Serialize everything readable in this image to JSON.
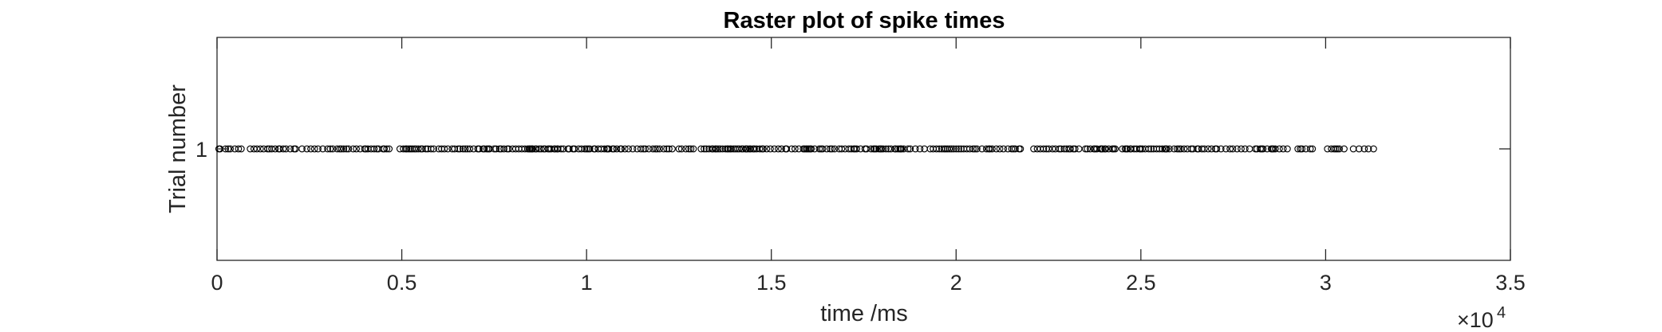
{
  "chart_data": {
    "type": "scatter",
    "title": "Raster plot of spike times",
    "xlabel": "time /ms",
    "ylabel": "Trial number",
    "xlim": [
      0,
      35000
    ],
    "ylim": [
      0,
      2
    ],
    "x_scale_label": {
      "base": "×10",
      "exponent": "4"
    },
    "x_ticks": [
      {
        "value": 0,
        "label": "0"
      },
      {
        "value": 5000,
        "label": "0.5"
      },
      {
        "value": 10000,
        "label": "1"
      },
      {
        "value": 15000,
        "label": "1.5"
      },
      {
        "value": 20000,
        "label": "2"
      },
      {
        "value": 25000,
        "label": "2.5"
      },
      {
        "value": 30000,
        "label": "3"
      },
      {
        "value": 35000,
        "label": "3.5"
      }
    ],
    "y_ticks": [
      {
        "value": 1,
        "label": "1"
      }
    ],
    "marker": "open-circle",
    "marker_color": "#000000",
    "grid": false,
    "series": [
      {
        "trial": 1,
        "spike_segments_ms": [
          [
            50,
            750,
            95
          ],
          [
            900,
            2200,
            75
          ],
          [
            2300,
            3500,
            85
          ],
          [
            3500,
            4700,
            80
          ],
          [
            4950,
            5900,
            60
          ],
          [
            6000,
            7400,
            75
          ],
          [
            7500,
            7950,
            80
          ],
          [
            8000,
            9400,
            55
          ],
          [
            9500,
            10100,
            70
          ],
          [
            10200,
            11200,
            65
          ],
          [
            11250,
            12400,
            75
          ],
          [
            12500,
            13000,
            90
          ],
          [
            13100,
            14550,
            50
          ],
          [
            14600,
            15500,
            70
          ],
          [
            15550,
            16400,
            80
          ],
          [
            16500,
            17600,
            75
          ],
          [
            17700,
            18600,
            65
          ],
          [
            18700,
            19200,
            90
          ],
          [
            19300,
            20600,
            55
          ],
          [
            20700,
            21800,
            75
          ],
          [
            22100,
            23400,
            70
          ],
          [
            23500,
            24400,
            65
          ],
          [
            24500,
            25800,
            60
          ],
          [
            25900,
            27200,
            75
          ],
          [
            27300,
            28000,
            80
          ],
          [
            28100,
            29000,
            70
          ],
          [
            29250,
            29700,
            110
          ],
          [
            30050,
            30500,
            110
          ],
          [
            30750,
            31300,
            110
          ]
        ]
      }
    ]
  }
}
